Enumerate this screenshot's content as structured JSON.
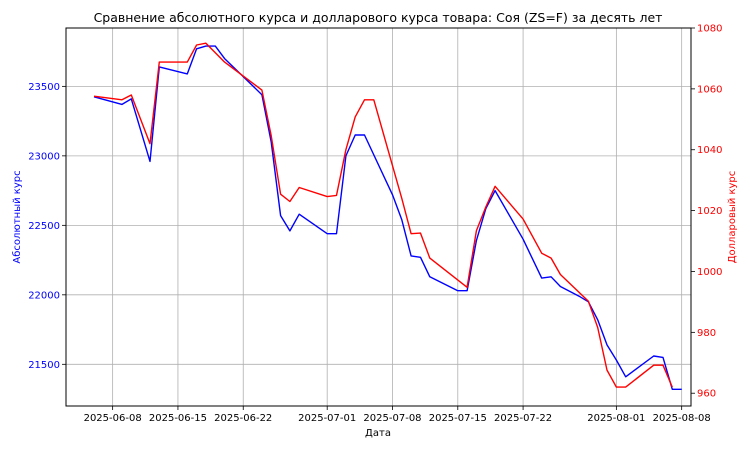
{
  "chart_data": {
    "type": "line",
    "title": "Сравнение абсолютного курса и долларового курса товара: Соя (ZS=F) за десять лет",
    "xlabel": "Дата",
    "ylabel_left": "Абсолютный курс",
    "ylabel_right": "Долларовый курс",
    "grid": true,
    "x_range": [
      "2025-06-03",
      "2025-08-09"
    ],
    "y_left": {
      "range": [
        21200,
        23920
      ],
      "ticks": [
        21500,
        22000,
        22500,
        23000,
        23500
      ],
      "tick_labels": [
        "21500",
        "22000",
        "22500",
        "23000",
        "23500"
      ]
    },
    "y_right": {
      "range": [
        955.8,
        1080
      ],
      "ticks": [
        960,
        980,
        1000,
        1020,
        1040,
        1060,
        1080
      ],
      "tick_labels": [
        "960",
        "980",
        "1000",
        "1020",
        "1040",
        "1060",
        "1080"
      ]
    },
    "x_ticks": [
      "2025-06-08",
      "2025-06-15",
      "2025-06-22",
      "2025-07-01",
      "2025-07-08",
      "2025-07-15",
      "2025-07-22",
      "2025-08-01",
      "2025-08-08"
    ],
    "colors": {
      "left_series": "#0000ff",
      "right_series": "#ff0000",
      "grid": "#b0b0b0"
    },
    "series": [
      {
        "axis": "left",
        "points": [
          [
            "2025-06-06",
            23425
          ],
          [
            "2025-06-09",
            23370
          ],
          [
            "2025-06-10",
            23410
          ],
          [
            "2025-06-12",
            22960
          ],
          [
            "2025-06-13",
            23640
          ],
          [
            "2025-06-16",
            23590
          ],
          [
            "2025-06-17",
            23770
          ],
          [
            "2025-06-18",
            23790
          ],
          [
            "2025-06-19",
            23790
          ],
          [
            "2025-06-20",
            23700
          ],
          [
            "2025-06-24",
            23440
          ],
          [
            "2025-06-25",
            23100
          ],
          [
            "2025-06-26",
            22570
          ],
          [
            "2025-06-27",
            22460
          ],
          [
            "2025-06-28",
            22580
          ],
          [
            "2025-07-01",
            22440
          ],
          [
            "2025-07-02",
            22440
          ],
          [
            "2025-07-03",
            23000
          ],
          [
            "2025-07-04",
            23150
          ],
          [
            "2025-07-05",
            23150
          ],
          [
            "2025-07-08",
            22720
          ],
          [
            "2025-07-09",
            22540
          ],
          [
            "2025-07-10",
            22280
          ],
          [
            "2025-07-11",
            22270
          ],
          [
            "2025-07-12",
            22130
          ],
          [
            "2025-07-15",
            22030
          ],
          [
            "2025-07-16",
            22030
          ],
          [
            "2025-07-17",
            22390
          ],
          [
            "2025-07-18",
            22620
          ],
          [
            "2025-07-19",
            22750
          ],
          [
            "2025-07-22",
            22400
          ],
          [
            "2025-07-24",
            22120
          ],
          [
            "2025-07-25",
            22130
          ],
          [
            "2025-07-26",
            22060
          ],
          [
            "2025-07-28",
            21990
          ],
          [
            "2025-07-29",
            21950
          ],
          [
            "2025-07-30",
            21820
          ],
          [
            "2025-07-31",
            21640
          ],
          [
            "2025-08-01",
            21530
          ],
          [
            "2025-08-02",
            21410
          ],
          [
            "2025-08-05",
            21560
          ],
          [
            "2025-08-06",
            21550
          ],
          [
            "2025-08-07",
            21320
          ],
          [
            "2025-08-08",
            21320
          ]
        ]
      },
      {
        "axis": "right",
        "points": [
          [
            "2025-06-06",
            1057.6
          ],
          [
            "2025-06-09",
            1056.4
          ],
          [
            "2025-06-10",
            1058.0
          ],
          [
            "2025-06-12",
            1042.0
          ],
          [
            "2025-06-13",
            1068.8
          ],
          [
            "2025-06-16",
            1068.8
          ],
          [
            "2025-06-17",
            1074.4
          ],
          [
            "2025-06-18",
            1075.0
          ],
          [
            "2025-06-20",
            1068.8
          ],
          [
            "2025-06-24",
            1059.6
          ],
          [
            "2025-06-25",
            1044.6
          ],
          [
            "2025-06-26",
            1025.4
          ],
          [
            "2025-06-27",
            1023.0
          ],
          [
            "2025-06-28",
            1027.6
          ],
          [
            "2025-07-01",
            1024.6
          ],
          [
            "2025-07-02",
            1025.0
          ],
          [
            "2025-07-03",
            1040.0
          ],
          [
            "2025-07-04",
            1050.8
          ],
          [
            "2025-07-05",
            1056.4
          ],
          [
            "2025-07-06",
            1056.4
          ],
          [
            "2025-07-09",
            1024.0
          ],
          [
            "2025-07-10",
            1012.4
          ],
          [
            "2025-07-11",
            1012.6
          ],
          [
            "2025-07-12",
            1004.4
          ],
          [
            "2025-07-16",
            994.8
          ],
          [
            "2025-07-17",
            1013.4
          ],
          [
            "2025-07-18",
            1021.2
          ],
          [
            "2025-07-19",
            1028.0
          ],
          [
            "2025-07-22",
            1017.2
          ],
          [
            "2025-07-24",
            1006.0
          ],
          [
            "2025-07-25",
            1004.4
          ],
          [
            "2025-07-26",
            999.0
          ],
          [
            "2025-07-29",
            990.2
          ],
          [
            "2025-07-30",
            981.6
          ],
          [
            "2025-07-31",
            967.6
          ],
          [
            "2025-08-01",
            962.0
          ],
          [
            "2025-08-02",
            962.0
          ],
          [
            "2025-08-05",
            969.2
          ],
          [
            "2025-08-06",
            969.2
          ],
          [
            "2025-08-07",
            962.0
          ]
        ]
      }
    ]
  }
}
